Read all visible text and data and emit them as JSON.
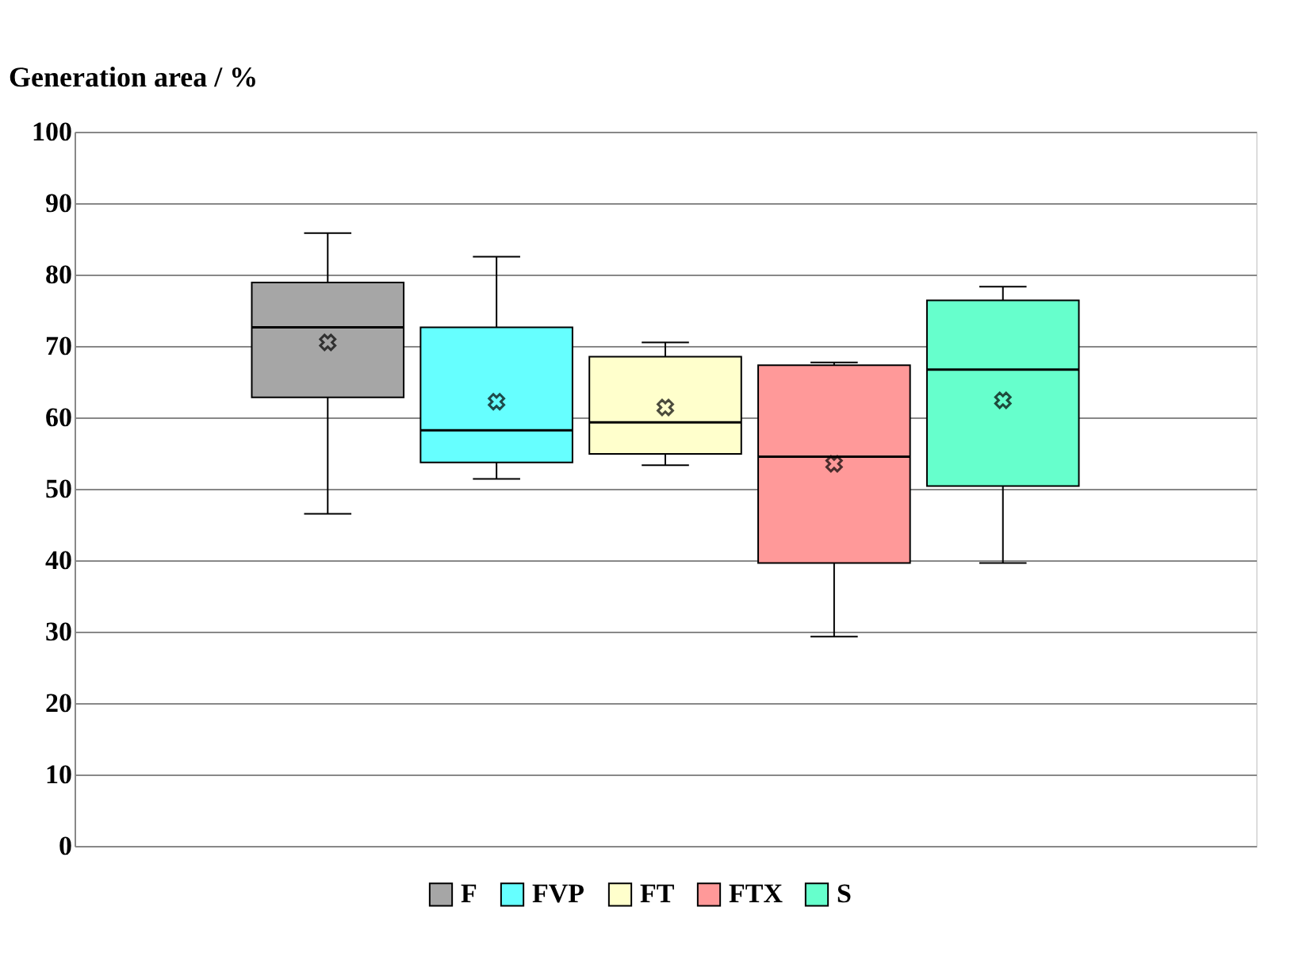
{
  "chart_data": {
    "type": "box",
    "ylabel": "Generation area / %",
    "categories": [
      null,
      null,
      null,
      null,
      null,
      null,
      null
    ],
    "series": [
      {
        "name": "F",
        "color": "#a6a6a6",
        "boxes": [
          null,
          {
            "low": 46.5,
            "q1": 62.8,
            "median": 72.6,
            "q3": 78.9,
            "high": 85.8,
            "mean": 70.5
          },
          null,
          null,
          null,
          null,
          null
        ]
      },
      {
        "name": "FVP",
        "color": "#66ffff",
        "boxes": [
          null,
          null,
          {
            "low": 51.4,
            "q1": 53.7,
            "median": 58.2,
            "q3": 72.6,
            "high": 82.5,
            "mean": 62.2
          },
          null,
          null,
          null,
          null
        ]
      },
      {
        "name": "FT",
        "color": "#ffffcc",
        "boxes": [
          null,
          null,
          null,
          {
            "low": 53.3,
            "q1": 54.9,
            "median": 59.3,
            "q3": 68.5,
            "high": 70.5,
            "mean": 61.4
          },
          null,
          null,
          null
        ]
      },
      {
        "name": "FTX",
        "color": "#ff9999",
        "boxes": [
          null,
          null,
          null,
          null,
          {
            "low": 29.3,
            "q1": 39.6,
            "median": 54.5,
            "q3": 67.3,
            "high": 67.7,
            "mean": 53.5
          },
          null,
          null
        ]
      },
      {
        "name": "S",
        "color": "#66ffcc",
        "boxes": [
          null,
          null,
          null,
          null,
          null,
          {
            "low": 39.6,
            "q1": 50.4,
            "median": 66.7,
            "q3": 76.4,
            "high": 78.3,
            "mean": 62.4
          },
          null
        ]
      }
    ],
    "ylim": [
      0,
      100
    ],
    "yticks": [
      0,
      10,
      20,
      30,
      40,
      50,
      60,
      70,
      80,
      90,
      100
    ],
    "grid": "y",
    "legend": "bottom",
    "tick_labels": "y",
    "marker": "cross"
  }
}
